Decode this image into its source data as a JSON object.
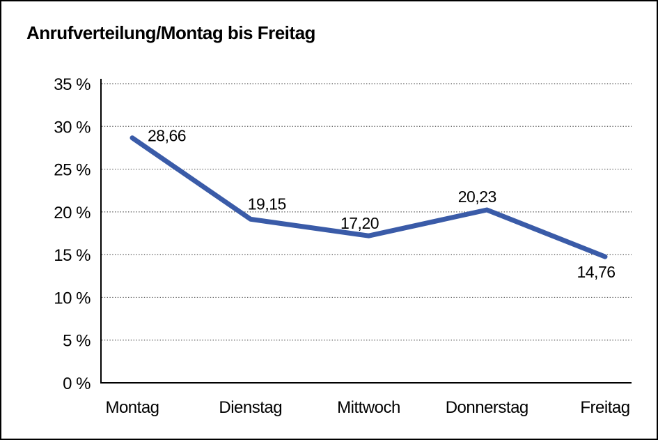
{
  "window": {
    "background_color": "#ffffff",
    "frame_border_color": "#000000"
  },
  "chart_data": {
    "type": "line",
    "title": "Anrufverteilung/Montag bis Freitag",
    "categories": [
      "Montag",
      "Dienstag",
      "Mittwoch",
      "Donnerstag",
      "Freitag"
    ],
    "series": [
      {
        "name": "Anrufverteilung",
        "values": [
          28.66,
          19.15,
          17.2,
          20.23,
          14.76
        ]
      }
    ],
    "value_labels": [
      "28,66",
      "19,15",
      "17,20",
      "20,23",
      "14,76"
    ],
    "xlabel": "",
    "ylabel": "",
    "ylim": [
      0,
      35
    ],
    "y_ticks": [
      0,
      5,
      10,
      15,
      20,
      25,
      30,
      35
    ],
    "y_tick_labels": [
      "0 %",
      "5 %",
      "10 %",
      "15 %",
      "20 %",
      "25 %",
      "30 %",
      "35 %"
    ],
    "grid": "horizontal-dotted",
    "gridline_color": "#555555",
    "axis_color": "#000000",
    "line_color": "#3A5BA8",
    "label_color": "#000000",
    "legend": "none",
    "markers": "none"
  }
}
